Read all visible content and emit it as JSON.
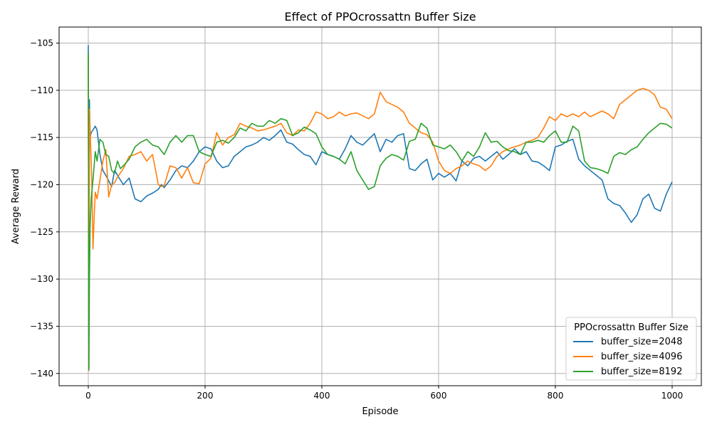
{
  "chart_data": {
    "type": "line",
    "title": "Effect of PPOcrossattn Buffer Size",
    "xlabel": "Episode",
    "ylabel": "Average Reward",
    "xlim": [
      -50,
      1050
    ],
    "ylim": [
      -141.3,
      -103.3
    ],
    "xticks": [
      0,
      200,
      400,
      600,
      800,
      1000
    ],
    "yticks": [
      -140,
      -135,
      -130,
      -125,
      -120,
      -115,
      -110,
      -105
    ],
    "grid": true,
    "legend": {
      "title": "PPOcrossattn Buffer Size",
      "position": "lower-right"
    },
    "series": [
      {
        "name": "buffer_size=2048",
        "color": "#1f77b4",
        "x": [
          0,
          1,
          2,
          3,
          5,
          8,
          12,
          15,
          20,
          25,
          30,
          40,
          45,
          55,
          60,
          70,
          80,
          90,
          100,
          110,
          120,
          125,
          130,
          140,
          150,
          160,
          170,
          180,
          190,
          200,
          210,
          220,
          230,
          240,
          250,
          260,
          270,
          280,
          290,
          300,
          310,
          320,
          330,
          340,
          350,
          360,
          370,
          380,
          390,
          400,
          410,
          420,
          430,
          440,
          450,
          460,
          470,
          480,
          490,
          500,
          510,
          520,
          530,
          540,
          550,
          560,
          570,
          580,
          590,
          600,
          610,
          620,
          630,
          640,
          650,
          660,
          670,
          680,
          690,
          700,
          710,
          720,
          730,
          740,
          750,
          760,
          770,
          780,
          790,
          800,
          810,
          820,
          830,
          840,
          850,
          860,
          870,
          880,
          890,
          900,
          910,
          920,
          930,
          940,
          950,
          960,
          970,
          980,
          990,
          1000
        ],
        "values": [
          -105.2,
          -139.5,
          -111.0,
          -115.0,
          -114.5,
          -114.2,
          -113.8,
          -114.2,
          -116.8,
          -118.5,
          -119.0,
          -120.2,
          -118.5,
          -119.5,
          -120.0,
          -119.3,
          -121.5,
          -121.8,
          -121.2,
          -120.9,
          -120.5,
          -120.0,
          -120.3,
          -119.5,
          -118.5,
          -118.0,
          -118.2,
          -117.5,
          -116.5,
          -116.0,
          -116.2,
          -117.5,
          -118.2,
          -118.0,
          -117.0,
          -116.5,
          -116.0,
          -115.8,
          -115.5,
          -115.0,
          -115.3,
          -114.8,
          -114.2,
          -115.5,
          -115.7,
          -116.3,
          -116.8,
          -117.0,
          -117.9,
          -116.5,
          -116.8,
          -117.0,
          -117.3,
          -116.2,
          -114.8,
          -115.5,
          -115.8,
          -115.2,
          -114.6,
          -116.5,
          -115.2,
          -115.5,
          -114.8,
          -114.6,
          -118.3,
          -118.5,
          -117.8,
          -117.3,
          -119.5,
          -118.8,
          -119.2,
          -118.8,
          -119.6,
          -117.5,
          -118.0,
          -117.2,
          -117.0,
          -117.5,
          -117.0,
          -116.5,
          -117.3,
          -116.8,
          -116.2,
          -116.8,
          -116.5,
          -117.5,
          -117.6,
          -118.0,
          -118.5,
          -116.0,
          -115.8,
          -115.4,
          -115.2,
          -117.3,
          -118.0,
          -118.5,
          -119.0,
          -119.5,
          -121.5,
          -122.0,
          -122.2,
          -123.0,
          -124.0,
          -123.2,
          -121.5,
          -121.0,
          -122.5,
          -122.8,
          -121.0,
          -119.7
        ]
      },
      {
        "name": "buffer_size=4096",
        "color": "#ff7f0e",
        "x": [
          0,
          1,
          2,
          4,
          6,
          8,
          10,
          12,
          15,
          20,
          25,
          30,
          35,
          40,
          45,
          50,
          60,
          70,
          80,
          90,
          100,
          110,
          120,
          125,
          130,
          140,
          150,
          160,
          170,
          180,
          190,
          200,
          210,
          220,
          230,
          240,
          250,
          260,
          270,
          280,
          290,
          300,
          310,
          320,
          330,
          340,
          350,
          360,
          370,
          380,
          390,
          400,
          410,
          420,
          430,
          440,
          450,
          460,
          470,
          480,
          490,
          500,
          510,
          520,
          530,
          540,
          550,
          560,
          570,
          580,
          590,
          600,
          610,
          620,
          630,
          640,
          650,
          660,
          670,
          680,
          690,
          700,
          710,
          720,
          730,
          740,
          750,
          760,
          770,
          780,
          790,
          800,
          810,
          820,
          830,
          840,
          850,
          860,
          870,
          880,
          890,
          900,
          910,
          920,
          930,
          940,
          950,
          960,
          970,
          980,
          990,
          1000
        ],
        "values": [
          -106.5,
          -139.7,
          -112.0,
          -115.8,
          -119.5,
          -126.8,
          -123.5,
          -120.8,
          -121.5,
          -119.5,
          -117.5,
          -116.3,
          -121.3,
          -120.0,
          -119.8,
          -119.2,
          -118.3,
          -117.0,
          -116.8,
          -116.5,
          -117.5,
          -116.8,
          -120.0,
          -120.2,
          -120.1,
          -118.0,
          -118.2,
          -119.3,
          -118.2,
          -119.8,
          -119.9,
          -117.8,
          -117.2,
          -114.5,
          -115.8,
          -115.0,
          -114.7,
          -113.5,
          -113.8,
          -114.0,
          -114.3,
          -114.2,
          -114.0,
          -113.8,
          -113.5,
          -114.5,
          -114.8,
          -114.2,
          -114.3,
          -113.5,
          -112.3,
          -112.5,
          -113.0,
          -112.8,
          -112.3,
          -112.7,
          -112.5,
          -112.4,
          -112.7,
          -113.0,
          -112.5,
          -110.2,
          -111.2,
          -111.5,
          -111.8,
          -112.3,
          -113.5,
          -114.0,
          -114.5,
          -114.7,
          -115.5,
          -117.5,
          -118.5,
          -118.8,
          -118.3,
          -118.0,
          -117.5,
          -117.8,
          -118.0,
          -118.5,
          -118.0,
          -117.0,
          -116.5,
          -116.2,
          -116.0,
          -115.8,
          -115.5,
          -115.3,
          -115.0,
          -114.0,
          -112.8,
          -113.2,
          -112.5,
          -112.8,
          -112.5,
          -112.8,
          -112.3,
          -112.8,
          -112.5,
          -112.2,
          -112.5,
          -113.0,
          -111.5,
          -111.0,
          -110.5,
          -110.0,
          -109.8,
          -110.0,
          -110.5,
          -111.8,
          -112.0,
          -113.0
        ]
      },
      {
        "name": "buffer_size=8192",
        "color": "#2ca02c",
        "x": [
          0,
          1,
          2,
          3,
          5,
          8,
          12,
          15,
          20,
          25,
          30,
          35,
          40,
          45,
          50,
          55,
          60,
          70,
          80,
          90,
          100,
          110,
          120,
          130,
          140,
          150,
          160,
          170,
          180,
          190,
          200,
          210,
          220,
          230,
          240,
          250,
          260,
          270,
          280,
          290,
          300,
          310,
          320,
          330,
          340,
          350,
          360,
          370,
          380,
          390,
          400,
          410,
          420,
          430,
          440,
          450,
          460,
          470,
          480,
          490,
          500,
          510,
          520,
          530,
          540,
          550,
          560,
          570,
          580,
          590,
          600,
          610,
          620,
          630,
          640,
          650,
          660,
          670,
          680,
          690,
          700,
          710,
          720,
          730,
          740,
          750,
          760,
          770,
          780,
          790,
          800,
          810,
          820,
          830,
          840,
          850,
          860,
          870,
          880,
          890,
          900,
          910,
          920,
          930,
          940,
          950,
          960,
          970,
          980,
          990,
          1000
        ],
        "values": [
          -106.0,
          -139.6,
          -130.0,
          -124.5,
          -121.5,
          -119.5,
          -116.5,
          -117.5,
          -115.2,
          -115.5,
          -116.8,
          -117.0,
          -118.5,
          -118.8,
          -117.5,
          -118.3,
          -118.0,
          -117.3,
          -116.0,
          -115.5,
          -115.2,
          -115.8,
          -116.0,
          -116.8,
          -115.5,
          -114.8,
          -115.5,
          -114.8,
          -114.8,
          -116.5,
          -116.8,
          -117.0,
          -115.5,
          -115.3,
          -115.6,
          -115.0,
          -114.0,
          -114.3,
          -113.5,
          -113.8,
          -113.8,
          -113.2,
          -113.5,
          -113.0,
          -113.2,
          -114.8,
          -114.5,
          -113.9,
          -114.2,
          -114.6,
          -116.0,
          -116.8,
          -117.0,
          -117.3,
          -117.8,
          -116.5,
          -118.5,
          -119.5,
          -120.5,
          -120.2,
          -118.0,
          -117.2,
          -116.8,
          -117.0,
          -117.4,
          -115.4,
          -115.2,
          -113.5,
          -114.0,
          -115.8,
          -116.0,
          -116.2,
          -115.8,
          -116.5,
          -117.5,
          -116.5,
          -117.0,
          -116.0,
          -114.5,
          -115.5,
          -115.4,
          -116.0,
          -116.4,
          -116.5,
          -116.8,
          -115.5,
          -115.5,
          -115.3,
          -115.5,
          -114.8,
          -114.3,
          -115.5,
          -115.5,
          -113.8,
          -114.3,
          -117.5,
          -118.2,
          -118.3,
          -118.5,
          -118.8,
          -117.0,
          -116.6,
          -116.8,
          -116.3,
          -116.0,
          -115.2,
          -114.5,
          -114.0,
          -113.5,
          -113.6,
          -114.0
        ]
      }
    ]
  }
}
